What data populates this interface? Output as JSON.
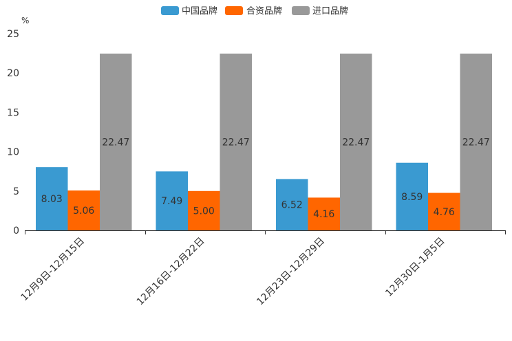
{
  "chart_data": {
    "type": "bar",
    "title": "",
    "xlabel": "",
    "ylabel": "",
    "y_unit": "%",
    "ylim": [
      0,
      25
    ],
    "y_ticks": [
      0,
      5,
      10,
      15,
      20,
      25
    ],
    "grid": false,
    "legend_position": "top-center",
    "categories": [
      "12月9日-12月15日",
      "12月16日-12月22日",
      "12月23日-12月29日",
      "12月30日-1月5日"
    ],
    "series": [
      {
        "name": "中国品牌",
        "color": "#3a9ad1",
        "values": [
          8.03,
          7.49,
          6.52,
          8.59
        ],
        "labels": [
          "8.03",
          "7.49",
          "6.52",
          "8.59"
        ]
      },
      {
        "name": "合资品牌",
        "color": "#ff6600",
        "values": [
          5.06,
          5.0,
          4.16,
          4.76
        ],
        "labels": [
          "5.06",
          "5.00",
          "4.16",
          "4.76"
        ]
      },
      {
        "name": "进口品牌",
        "color": "#999999",
        "values": [
          22.47,
          22.47,
          22.47,
          22.47
        ],
        "labels": [
          "22.47",
          "22.47",
          "22.47",
          "22.47"
        ]
      }
    ]
  }
}
